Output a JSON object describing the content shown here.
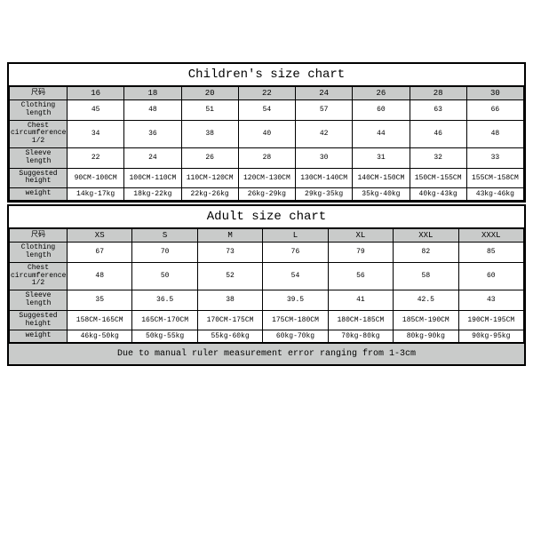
{
  "children": {
    "title": "Children's size chart",
    "row_header_label": "尺码",
    "sizes": [
      "16",
      "18",
      "20",
      "22",
      "24",
      "26",
      "28",
      "30"
    ],
    "rows": [
      {
        "label": "Clothing length",
        "values": [
          "45",
          "48",
          "51",
          "54",
          "57",
          "60",
          "63",
          "66"
        ]
      },
      {
        "label": "Chest circumference 1/2",
        "values": [
          "34",
          "36",
          "38",
          "40",
          "42",
          "44",
          "46",
          "48"
        ]
      },
      {
        "label": "Sleeve length",
        "values": [
          "22",
          "24",
          "26",
          "28",
          "30",
          "31",
          "32",
          "33"
        ]
      },
      {
        "label": "Suggested height",
        "values": [
          "90CM-100CM",
          "100CM-110CM",
          "110CM-120CM",
          "120CM-130CM",
          "130CM-140CM",
          "140CM-150CM",
          "150CM-155CM",
          "155CM-158CM"
        ]
      },
      {
        "label": "weight",
        "values": [
          "14kg-17kg",
          "18kg-22kg",
          "22kg-26kg",
          "26kg-29kg",
          "29kg-35kg",
          "35kg-40kg",
          "40kg-43kg",
          "43kg-46kg"
        ]
      }
    ]
  },
  "adult": {
    "title": "Adult size chart",
    "row_header_label": "尺码",
    "sizes": [
      "XS",
      "S",
      "M",
      "L",
      "XL",
      "XXL",
      "XXXL"
    ],
    "rows": [
      {
        "label": "Clothing length",
        "values": [
          "67",
          "70",
          "73",
          "76",
          "79",
          "82",
          "85"
        ]
      },
      {
        "label": "Chest circumference 1/2",
        "values": [
          "48",
          "50",
          "52",
          "54",
          "56",
          "58",
          "60"
        ]
      },
      {
        "label": "Sleeve length",
        "values": [
          "35",
          "36.5",
          "38",
          "39.5",
          "41",
          "42.5",
          "43"
        ]
      },
      {
        "label": "Suggested height",
        "values": [
          "158CM-165CM",
          "165CM-170CM",
          "170CM-175CM",
          "175CM-180CM",
          "180CM-185CM",
          "185CM-190CM",
          "190CM-195CM"
        ]
      },
      {
        "label": "weight",
        "values": [
          "46kg-50kg",
          "50kg-55kg",
          "55kg-60kg",
          "60kg-70kg",
          "70kg-80kg",
          "80kg-90kg",
          "90kg-95kg"
        ]
      }
    ],
    "note": "Due to manual ruler measurement error ranging from 1-3cm"
  },
  "style": {
    "header_bg": "#c9cbca",
    "cell_bg": "#ffffff",
    "border": "#000000",
    "title_fontsize": 14,
    "header_fontsize": 9,
    "cell_fontsize": 8,
    "font": "Courier New"
  }
}
